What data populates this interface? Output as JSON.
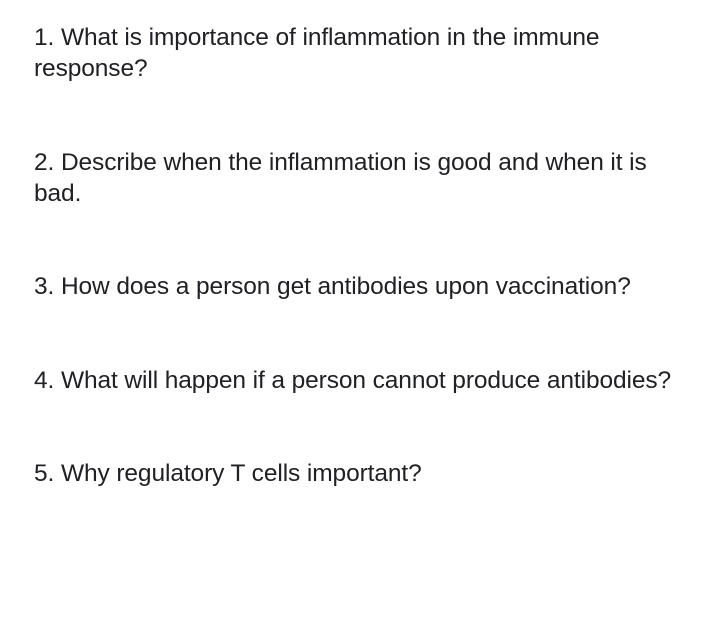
{
  "questions": [
    {
      "text": "1. What is importance of inflammation in the immune response?"
    },
    {
      "text": "2. Describe when the inflammation is good and when it is bad."
    },
    {
      "text": "3. How does a person get antibodies upon vaccination?"
    },
    {
      "text": "4. What will happen if a person cannot produce antibodies?"
    },
    {
      "text": "5. Why regulatory T cells important?"
    }
  ],
  "styling": {
    "background_color": "#ffffff",
    "text_color": "#202124",
    "font_size": 24.5,
    "font_family": "Arial, Helvetica, sans-serif",
    "line_height": 1.28,
    "question_spacing": 62
  }
}
